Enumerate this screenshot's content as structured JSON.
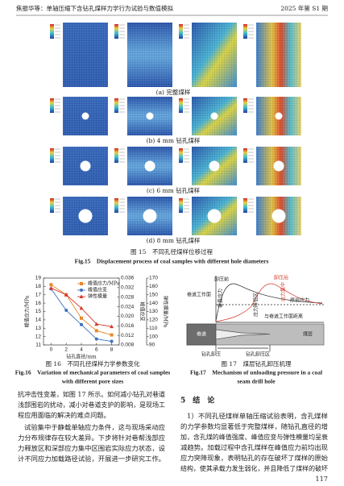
{
  "header": {
    "left": "焦振华等：单轴压缩下含钻孔煤样力学行为试验与数值模拟",
    "right": "2025 年第 S1 期"
  },
  "figure15": {
    "panels": [
      "(a) 完整煤样",
      "(b) 4 mm 钻孔煤样",
      "(c) 6 mm 钻孔煤样",
      "(d) 8 mm 钻孔煤样"
    ],
    "caption_cn": "图 15　不同孔径煤样位移过程",
    "caption_en": "Fig.15　Displacement process of coal samples with different hole diameters"
  },
  "chart_data": {
    "type": "line",
    "x": [
      0,
      2,
      4,
      6,
      8
    ],
    "xlim": [
      -1,
      9
    ],
    "xticks": [
      0,
      2,
      4,
      6,
      8
    ],
    "xlabel": "钻孔直径/mm",
    "ylabel": "峰值应力/MPa",
    "y2label": "峰值应变",
    "y3label": "弹性模量/MPa",
    "ylim": [
      11,
      19
    ],
    "yticks": [
      11,
      12,
      13,
      14,
      15,
      16,
      17,
      18,
      19
    ],
    "y2lim": [
      0.008,
      0.036
    ],
    "y2ticks": [
      0.008,
      0.012,
      0.016,
      {
        "value": 0.02,
        "label": "0.020"
      },
      0.024,
      0.028,
      0.032,
      0.036
    ],
    "y3lim": [
      90,
      170
    ],
    "y3ticks": [
      90,
      100,
      110,
      120,
      130,
      140,
      150,
      160,
      170
    ],
    "legend": "upper right",
    "series": [
      {
        "name": "峰值应力/MPa",
        "color": "#e8872c",
        "marker": "square",
        "axis": "y",
        "values": [
          18.2,
          17.0,
          14.2,
          12.7,
          12.2
        ]
      },
      {
        "name": "峰值应变",
        "color": "#3f6fc0",
        "marker": "circle",
        "axis": "y2",
        "values": [
          0.0315,
          0.0225,
          0.0165,
          0.0105,
          0.0095
        ]
      },
      {
        "name": "弹性模量",
        "color": "#d23a2a",
        "marker": "triangle",
        "axis": "y3",
        "values": [
          158,
          150,
          134,
          115,
          112
        ]
      }
    ]
  },
  "figure16": {
    "caption_cn": "图 16　不同孔径煤样力学参数变化",
    "caption_en": [
      "Fig.16　Variation of mechanical parameters of coal samples",
      "with different pore sizes"
    ]
  },
  "figure17": {
    "labels": [
      "卸压前",
      "卸压后",
      "垂直应力",
      "应力集中",
      "应力降低区",
      "巷道工作面",
      "原岩应力",
      "与巷道工作面距离",
      "巷道",
      "煤层",
      "钻孔卸压",
      "钻孔卸压区"
    ],
    "caption_cn": "图 17　煤层钻孔卸压机理",
    "caption_en": [
      "Fig.17　Mechanism of unloading pressure in a coal",
      "seam drill hole"
    ]
  },
  "body": {
    "left": [
      "抗冲击性变差，如图 17 所示。如何减小钻孔对巷道",
      "浅部围岩的扰动，减小对巷道支护的影响，是现场工",
      "程应用面临的解决的难点问题。",
      "试验集中于静载单轴应力条件，这与现场采动应",
      "力分布规律存在较大差异。下步将针对巷帮浅部应",
      "力释放区和深部应力集中区围岩实际应力状态，设",
      "计不同应力加载路径试验，开展进一步研究工作。"
    ],
    "section_title": "5　结　论",
    "right": [
      "1）不同孔径煤样单轴压缩试验表明，含孔煤样",
      "的力学参数均显著低于完整煤样，随钻孔直径的增",
      "加，含孔煤的峰值强度、峰值应变与弹性模量均呈衰",
      "减趋势。加载过程中含孔煤样在峰值应力前均出现",
      "应力突降现象，表明钻孔的存在破坏了煤样的原始",
      "结构，使其承载力发生弱化，并且降低了煤样的破坏"
    ]
  },
  "page_number": 117
}
